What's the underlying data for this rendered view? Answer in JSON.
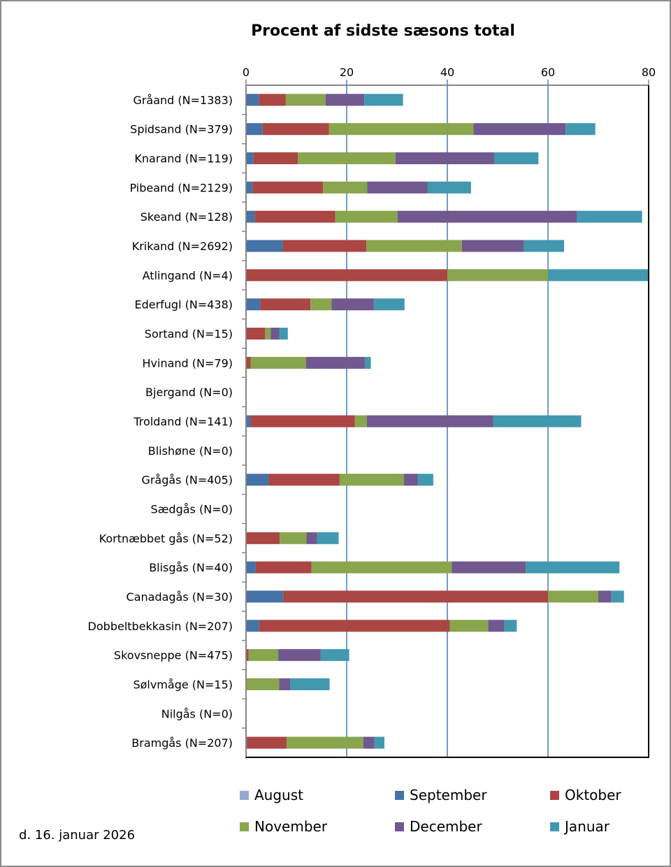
{
  "chart_data": {
    "type": "bar",
    "orientation": "horizontal",
    "stacked": true,
    "title": "Procent af sidste sæsons total",
    "xlabel": "",
    "ylabel": "",
    "xlim": [
      0,
      80
    ],
    "x_ticks": [
      0,
      20,
      40,
      60,
      80
    ],
    "x_tick_labels": [
      "0",
      "20",
      "40",
      "60",
      "80"
    ],
    "grid": "vertical major gridlines",
    "legend_position": "bottom",
    "categories": [
      "Gråand (N=1383)",
      "Spidsand (N=379)",
      "Knarand (N=119)",
      "Pibeand (N=2129)",
      "Skeand (N=128)",
      "Krikand (N=2692)",
      "Atlingand (N=4)",
      "Ederfugl (N=438)",
      "Sortand (N=15)",
      "Hvinand (N=79)",
      "Bjergand (N=0)",
      "Troldand (N=141)",
      "Blishøne (N=0)",
      "Grågås (N=405)",
      "Sædgås (N=0)",
      "Kortnæbbet gås (N=52)",
      "Blisgås (N=40)",
      "Canadagås (N=30)",
      "Dobbeltbekkasin (N=207)",
      "Skovsneppe (N=475)",
      "Sølvmåge (N=15)",
      "Nilgås (N=0)",
      "Bramgås (N=207)"
    ],
    "series": [
      {
        "name": "August",
        "color": "#95A9D0",
        "values": [
          0,
          0,
          0,
          0,
          0,
          0,
          0,
          0,
          0,
          0,
          0,
          0,
          0,
          0,
          0,
          0,
          0,
          0,
          0,
          0,
          0,
          0,
          0
        ]
      },
      {
        "name": "September",
        "color": "#4572A7",
        "values": [
          2.6,
          3.3,
          1.5,
          1.3,
          1.7,
          7.3,
          0,
          2.8,
          0,
          0,
          0,
          0.9,
          0,
          4.5,
          0,
          0,
          1.9,
          7.4,
          2.6,
          0,
          0,
          0,
          0.2
        ]
      },
      {
        "name": "Oktober",
        "color": "#AA4643",
        "values": [
          5.3,
          13.2,
          8.8,
          14.0,
          16.0,
          16.6,
          40.0,
          10.0,
          3.8,
          0.9,
          0,
          20.7,
          0,
          14.1,
          0,
          6.7,
          11.1,
          52.6,
          37.9,
          0.5,
          0,
          0,
          7.9
        ]
      },
      {
        "name": "November",
        "color": "#89A54E",
        "values": [
          7.9,
          28.7,
          19.4,
          8.8,
          12.4,
          19.0,
          20.0,
          4.2,
          1.1,
          11.0,
          0,
          2.4,
          0,
          12.8,
          0,
          5.3,
          27.9,
          10.0,
          7.6,
          5.9,
          6.6,
          0,
          15.2
        ]
      },
      {
        "name": "December",
        "color": "#71588F",
        "values": [
          7.7,
          18.3,
          19.6,
          12.0,
          35.6,
          12.3,
          0,
          8.4,
          1.7,
          11.7,
          0,
          25.1,
          0,
          2.7,
          0,
          2.1,
          14.7,
          2.6,
          3.2,
          8.4,
          2.2,
          0,
          2.2
        ]
      },
      {
        "name": "Januar",
        "color": "#4198AF",
        "values": [
          7.7,
          5.9,
          8.8,
          8.6,
          13.0,
          8.0,
          20.0,
          6.1,
          1.7,
          1.2,
          0,
          17.5,
          0,
          3.1,
          0,
          4.3,
          18.6,
          2.5,
          2.5,
          5.7,
          7.8,
          0,
          2.0
        ]
      }
    ]
  },
  "legend": {
    "items": [
      {
        "label": "August",
        "color": "#95A9D0"
      },
      {
        "label": "September",
        "color": "#4572A7"
      },
      {
        "label": "Oktober",
        "color": "#AA4643"
      },
      {
        "label": "November",
        "color": "#89A54E"
      },
      {
        "label": "December",
        "color": "#71588F"
      },
      {
        "label": "Januar",
        "color": "#4198AF"
      }
    ]
  },
  "footer": {
    "date": "d. 16. januar 2026"
  }
}
